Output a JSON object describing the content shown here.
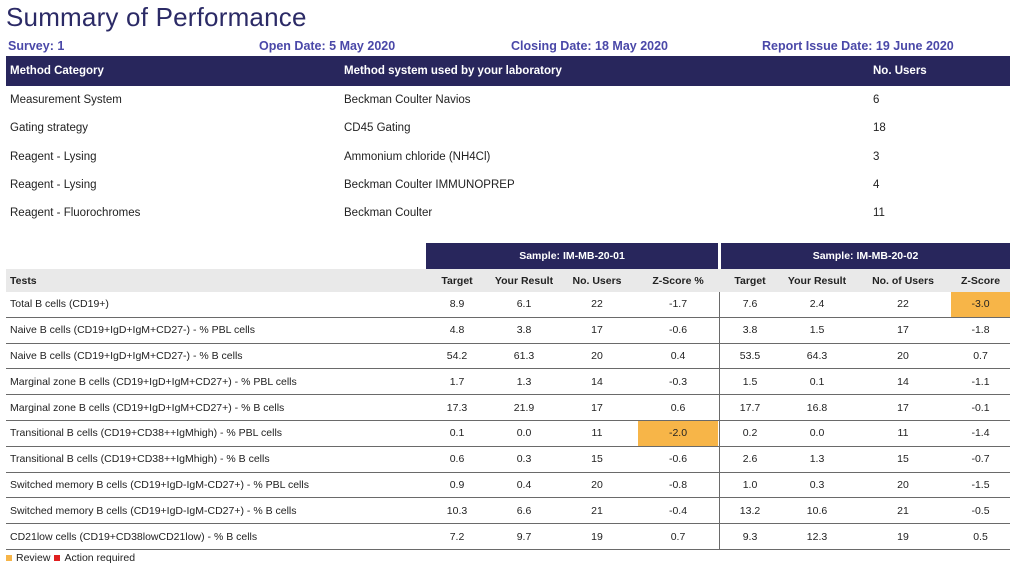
{
  "title": "Summary of Performance",
  "meta": {
    "survey": "Survey: 1",
    "open_date": "Open Date: 5 May 2020",
    "closing_date": "Closing Date: 18 May 2020",
    "report_issue_date": "Report Issue Date: 19 June 2020"
  },
  "method_table": {
    "headers": [
      "Method Category",
      "Method system used by your laboratory",
      "No. Users"
    ],
    "rows": [
      [
        "Measurement System",
        "Beckman Coulter Navios",
        "6"
      ],
      [
        "Gating strategy",
        "CD45 Gating",
        "18"
      ],
      [
        "Reagent - Lysing",
        "Ammonium chloride (NH4Cl)",
        "3"
      ],
      [
        "Reagent - Lysing",
        "Beckman Coulter IMMUNOPREP",
        "4"
      ],
      [
        "Reagent - Fluorochromes",
        "Beckman Coulter",
        "11"
      ]
    ]
  },
  "results_table": {
    "sample1": "Sample: IM-MB-20-01",
    "sample2": "Sample: IM-MB-20-02",
    "headers": [
      "Tests",
      "Target",
      "Your Result",
      "No. Users",
      "Z-Score %",
      "Target",
      "Your Result",
      "No. of Users",
      "Z-Score"
    ],
    "rows": [
      [
        "Total B cells (CD19+)",
        "8.9",
        "6.1",
        "22",
        "-1.7",
        "7.6",
        "2.4",
        "22",
        "-3.0"
      ],
      [
        "Naive B cells (CD19+IgD+IgM+CD27-) - % PBL cells",
        "4.8",
        "3.8",
        "17",
        "-0.6",
        "3.8",
        "1.5",
        "17",
        "-1.8"
      ],
      [
        "Naive B cells (CD19+IgD+IgM+CD27-) - % B cells",
        "54.2",
        "61.3",
        "20",
        "0.4",
        "53.5",
        "64.3",
        "20",
        "0.7"
      ],
      [
        "Marginal zone B cells (CD19+IgD+IgM+CD27+) - % PBL cells",
        "1.7",
        "1.3",
        "14",
        "-0.3",
        "1.5",
        "0.1",
        "14",
        "-1.1"
      ],
      [
        "Marginal zone B cells (CD19+IgD+IgM+CD27+) - % B cells",
        "17.3",
        "21.9",
        "17",
        "0.6",
        "17.7",
        "16.8",
        "17",
        "-0.1"
      ],
      [
        "Transitional B cells (CD19+CD38++IgMhigh) - % PBL cells",
        "0.1",
        "0.0",
        "11",
        "-2.0",
        "0.2",
        "0.0",
        "11",
        "-1.4"
      ],
      [
        "Transitional B cells (CD19+CD38++IgMhigh) - % B cells",
        "0.6",
        "0.3",
        "15",
        "-0.6",
        "2.6",
        "1.3",
        "15",
        "-0.7"
      ],
      [
        "Switched memory B cells (CD19+IgD-IgM-CD27+) - % PBL cells",
        "0.9",
        "0.4",
        "20",
        "-0.8",
        "1.0",
        "0.3",
        "20",
        "-1.5"
      ],
      [
        "Switched memory B cells (CD19+IgD-IgM-CD27+) - % B cells",
        "10.3",
        "6.6",
        "21",
        "-0.4",
        "13.2",
        "10.6",
        "21",
        "-0.5"
      ],
      [
        "CD21low cells (CD19+CD38lowCD21low) - % B cells",
        "7.2",
        "9.7",
        "19",
        "0.7",
        "9.3",
        "12.3",
        "19",
        "0.5"
      ]
    ],
    "highlight_color": "#f7b548"
  },
  "legend": {
    "review": "Review",
    "action_required": "Action required",
    "review_color": "#f7b548",
    "action_color": "#e02020"
  }
}
